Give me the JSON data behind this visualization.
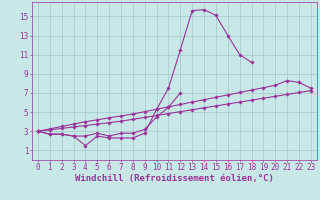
{
  "background_color": "#c8e8e8",
  "grid_color": "#aacccc",
  "line_color": "#993399",
  "marker_color": "#993399",
  "xlabel": "Windchill (Refroidissement éolien,°C)",
  "xlabel_color": "#993399",
  "ylabel_ticks": [
    1,
    3,
    5,
    7,
    9,
    11,
    13,
    15
  ],
  "xlim": [
    -0.5,
    23.5
  ],
  "ylim": [
    0.0,
    16.5
  ],
  "xtick_labels": [
    "0",
    "1",
    "2",
    "3",
    "4",
    "5",
    "6",
    "7",
    "8",
    "9",
    "10",
    "11",
    "12",
    "13",
    "14",
    "15",
    "16",
    "17",
    "18",
    "19",
    "20",
    "21",
    "22",
    "23"
  ],
  "series": [
    [
      3.0,
      2.7,
      2.7,
      2.5,
      1.5,
      2.5,
      2.3,
      2.3,
      2.3,
      2.8,
      5.3,
      7.5,
      11.5,
      15.6,
      15.7,
      15.1,
      13.0,
      11.0,
      10.2,
      null,
      null,
      null,
      null,
      null
    ],
    [
      3.0,
      2.7,
      2.7,
      2.5,
      2.5,
      2.8,
      2.5,
      2.8,
      2.8,
      3.2,
      4.5,
      5.5,
      7.0,
      null,
      null,
      null,
      null,
      null,
      null,
      null,
      null,
      null,
      null,
      null
    ],
    [
      3.0,
      3.15,
      3.3,
      3.45,
      3.6,
      3.75,
      3.9,
      4.05,
      4.25,
      4.45,
      4.65,
      4.85,
      5.05,
      5.25,
      5.45,
      5.65,
      5.85,
      6.05,
      6.25,
      6.45,
      6.65,
      6.85,
      7.05,
      7.25
    ],
    [
      3.0,
      3.25,
      3.5,
      3.75,
      4.0,
      4.2,
      4.4,
      4.6,
      4.8,
      5.05,
      5.3,
      5.55,
      5.8,
      6.05,
      6.3,
      6.55,
      6.8,
      7.05,
      7.3,
      7.55,
      7.8,
      8.3,
      8.1,
      7.5
    ]
  ],
  "font_family": "monospace",
  "tick_fontsize": 5.5,
  "label_fontsize": 6.5
}
